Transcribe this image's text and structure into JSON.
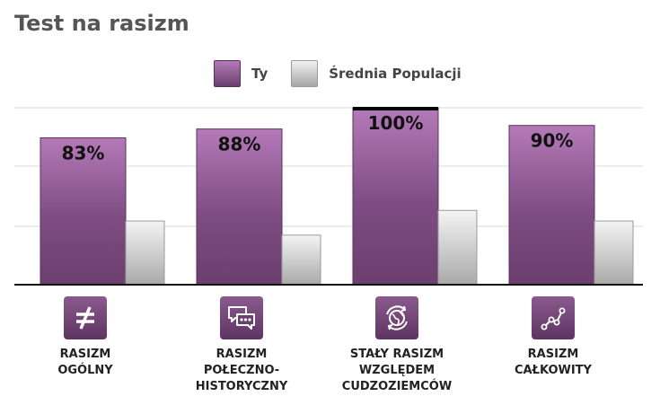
{
  "title": "Test na rasizm",
  "legend": {
    "you": "Ty",
    "average": "Średnia Populacji"
  },
  "colors": {
    "you_top": "#b47ab8",
    "you_bottom": "#6b3f6e",
    "avg_top": "#f2f2f2",
    "avg_bottom": "#a6a6a6",
    "grid": "#d9d9d9"
  },
  "categories": [
    {
      "label": "RASIZM\nOGÓLNY",
      "icon": "not-equal-icon"
    },
    {
      "label": "RASIZM\nPOŁECZNO-\nHISTORYCZNY",
      "icon": "speech-bubbles-icon"
    },
    {
      "label": "STAŁY RASIZM\nWZGLĘDEM\nCUDZOZIEMCÓW",
      "icon": "globe-arrows-icon"
    },
    {
      "label": "RASIZM\nCAŁKOWITY",
      "icon": "connected-dots-icon"
    }
  ],
  "chart_data": {
    "type": "bar",
    "title": "Test na rasizm",
    "categories": [
      "RASIZM OGÓLNY",
      "RASIZM POŁECZNO-HISTORYCZNY",
      "STAŁY RASIZM WZGLĘDEM CUDZOZIEMCÓW",
      "RASIZM CAŁKOWITY"
    ],
    "series": [
      {
        "name": "Ty",
        "values": [
          83,
          88,
          100,
          90
        ],
        "labels": [
          "83%",
          "88%",
          "100%",
          "90%"
        ]
      },
      {
        "name": "Średnia Populacji",
        "values": [
          36,
          28,
          42,
          36
        ]
      }
    ],
    "ylim": [
      0,
      100
    ],
    "grid": true,
    "legend_position": "top-center"
  }
}
